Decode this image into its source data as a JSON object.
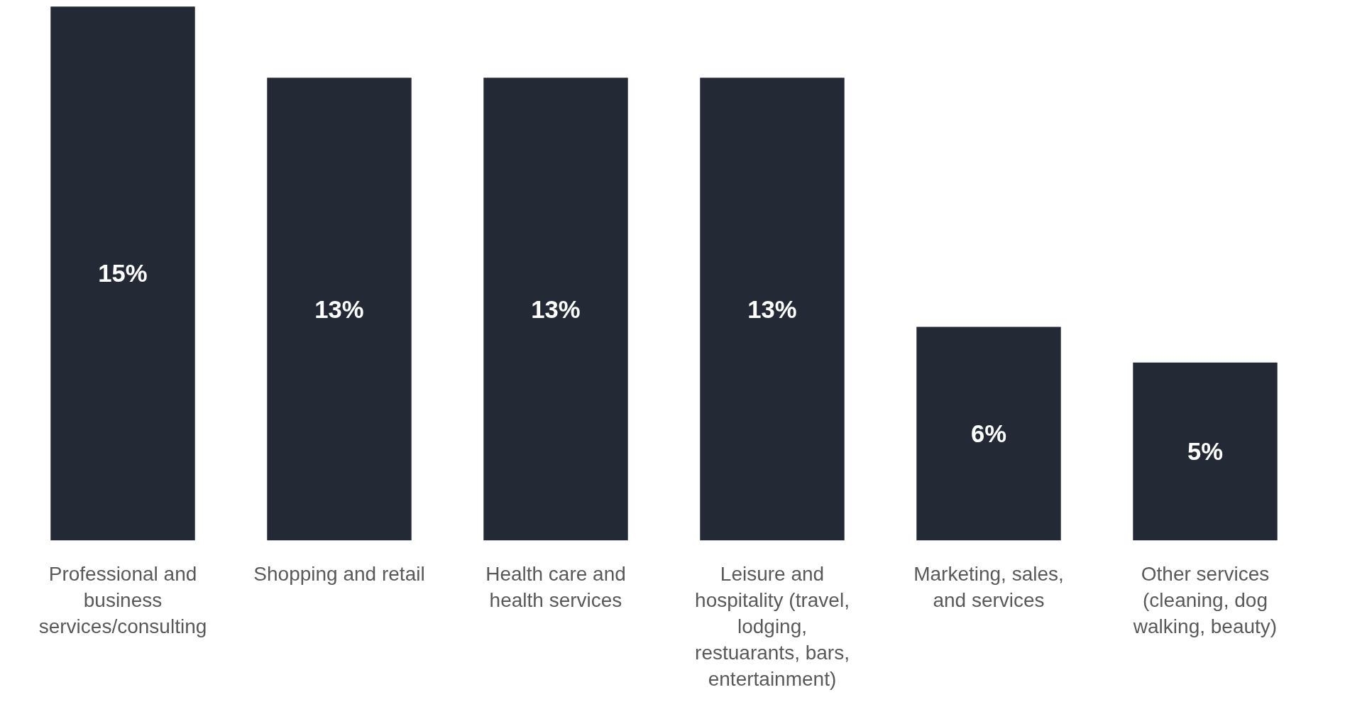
{
  "chart_data": {
    "type": "bar",
    "categories": [
      "Professional and business services/consulting",
      "Shopping and retail",
      "Health care and health services",
      "Leisure and hospitality (travel, lodging, restuarants, bars, entertainment)",
      "Marketing, sales, and services",
      "Other services (cleaning, dog walking, beauty)"
    ],
    "values": [
      15,
      13,
      13,
      13,
      6,
      5
    ],
    "value_labels": [
      "15%",
      "13%",
      "13%",
      "13%",
      "6%",
      "5%"
    ],
    "color": "#242a35"
  }
}
